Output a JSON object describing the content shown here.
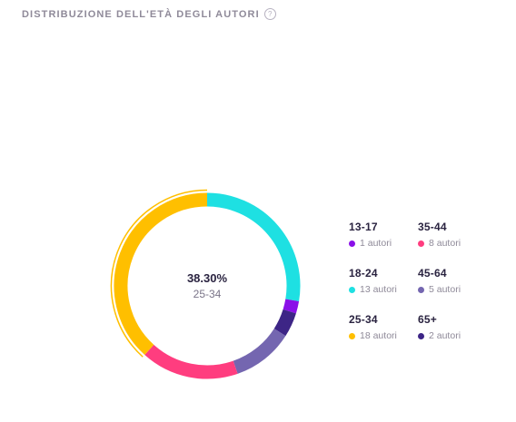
{
  "widget": {
    "title": "Distribuzione dell'età degli autori",
    "help_icon": "question-circle-icon"
  },
  "center": {
    "percent": "38.30%",
    "label": "25-34"
  },
  "legend": [
    {
      "range": "13-17",
      "count": "1 autori",
      "color": "#8a10e8"
    },
    {
      "range": "35-44",
      "count": "8 autori",
      "color": "#ff3d7f"
    },
    {
      "range": "18-24",
      "count": "13 autori",
      "color": "#1ee0e2"
    },
    {
      "range": "45-64",
      "count": "5 autori",
      "color": "#7466b0"
    },
    {
      "range": "25-34",
      "count": "18 autori",
      "color": "#ffbf00"
    },
    {
      "range": "65+",
      "count": "2 autori",
      "color": "#3d2586"
    }
  ],
  "chart_data": {
    "type": "pie",
    "categories": [
      "18-24",
      "13-17",
      "65+",
      "45-64",
      "35-44",
      "25-34"
    ],
    "values": [
      13,
      1,
      2,
      5,
      8,
      18
    ],
    "colors": [
      "#1ee0e2",
      "#8a10e8",
      "#3d2586",
      "#7466b0",
      "#ff3d7f",
      "#ffbf00"
    ],
    "highlighted": "25-34"
  }
}
